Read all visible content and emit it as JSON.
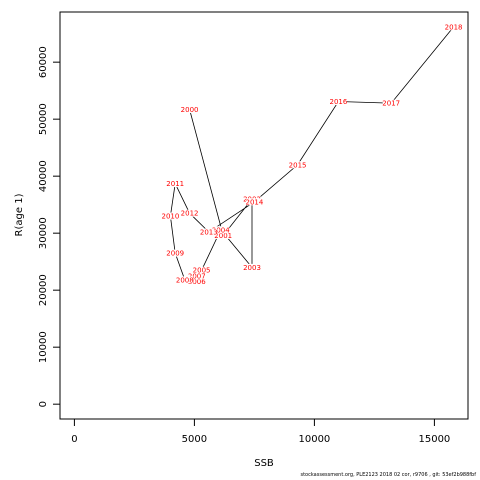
{
  "footer_text": "stockassessment.org, PLE2123 2018 02 cor, r9706 , git: 53ef2b988fbf",
  "chart_data": {
    "type": "line",
    "xlabel": "SSB",
    "ylabel": "R(age 1)",
    "xlim": [
      -600,
      16400
    ],
    "ylim": [
      -2600,
      68800
    ],
    "xticks": [
      0,
      5000,
      10000,
      15000
    ],
    "yticks": [
      0,
      10000,
      20000,
      30000,
      40000,
      50000,
      60000
    ],
    "grid": false,
    "line_color": "#000000",
    "label_color": "#ff0000",
    "points": [
      {
        "label": "2000",
        "x": 4800,
        "y": 51700
      },
      {
        "label": "2001",
        "x": 6200,
        "y": 29600
      },
      {
        "label": "2002",
        "x": 7400,
        "y": 36000
      },
      {
        "label": "2003",
        "x": 7400,
        "y": 24000
      },
      {
        "label": "2004",
        "x": 6100,
        "y": 30600
      },
      {
        "label": "2005",
        "x": 5300,
        "y": 23500
      },
      {
        "label": "2006",
        "x": 5100,
        "y": 21500
      },
      {
        "label": "2007",
        "x": 5100,
        "y": 22500
      },
      {
        "label": "2008",
        "x": 4600,
        "y": 21800
      },
      {
        "label": "2009",
        "x": 4200,
        "y": 26500
      },
      {
        "label": "2010",
        "x": 4000,
        "y": 33000
      },
      {
        "label": "2011",
        "x": 4200,
        "y": 38700
      },
      {
        "label": "2012",
        "x": 4800,
        "y": 33500
      },
      {
        "label": "2013",
        "x": 5600,
        "y": 30200
      },
      {
        "label": "2014",
        "x": 7500,
        "y": 35500
      },
      {
        "label": "2015",
        "x": 9300,
        "y": 42000
      },
      {
        "label": "2016",
        "x": 11000,
        "y": 53100
      },
      {
        "label": "2017",
        "x": 13200,
        "y": 52800
      },
      {
        "label": "2018",
        "x": 15800,
        "y": 66200
      }
    ]
  }
}
